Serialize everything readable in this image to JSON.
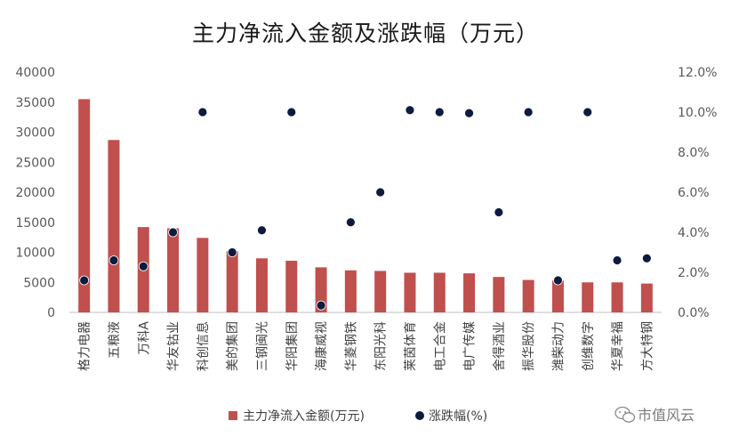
{
  "chart_data": {
    "type": "bar",
    "title": "主力净流入金额及涨跌幅（万元）",
    "categories": [
      "格力电器",
      "五粮液",
      "万科A",
      "华友钴业",
      "科创信息",
      "美的集团",
      "三钢闽光",
      "华阳集团",
      "海康威视",
      "华菱钢铁",
      "东阳光科",
      "莱茵体育",
      "电工合金",
      "电广传媒",
      "舍得酒业",
      "振华股份",
      "潍柴动力",
      "创维数字",
      "华夏幸福",
      "方大特钢"
    ],
    "series": [
      {
        "name": "主力净流入金额(万元)",
        "type": "bar",
        "axis": "left",
        "color": "#c0504d",
        "values": [
          35500,
          28700,
          14200,
          14000,
          12400,
          10200,
          9000,
          8600,
          7500,
          7000,
          6900,
          6600,
          6600,
          6500,
          5900,
          5400,
          5300,
          5000,
          5000,
          4800
        ]
      },
      {
        "name": "涨跌幅(%)",
        "type": "scatter",
        "axis": "right",
        "color": "#0d1b3e",
        "values": [
          1.6,
          2.6,
          2.3,
          4.0,
          10.0,
          3.0,
          4.1,
          10.0,
          0.35,
          4.5,
          6.0,
          10.1,
          10.0,
          9.95,
          5.0,
          10.0,
          1.6,
          10.0,
          2.6,
          2.7
        ]
      }
    ],
    "y_left": {
      "min": 0,
      "max": 40000,
      "step": 5000,
      "ticks": [
        "0",
        "5000",
        "10000",
        "15000",
        "20000",
        "25000",
        "30000",
        "35000",
        "40000"
      ]
    },
    "y_right": {
      "min": 0,
      "max": 12,
      "step": 2,
      "ticks": [
        "0.0%",
        "2.0%",
        "4.0%",
        "6.0%",
        "8.0%",
        "10.0%",
        "12.0%"
      ]
    },
    "grid": false,
    "legend": "bottom"
  },
  "watermark": {
    "text": "市值风云",
    "icon": "wechat-icon"
  }
}
